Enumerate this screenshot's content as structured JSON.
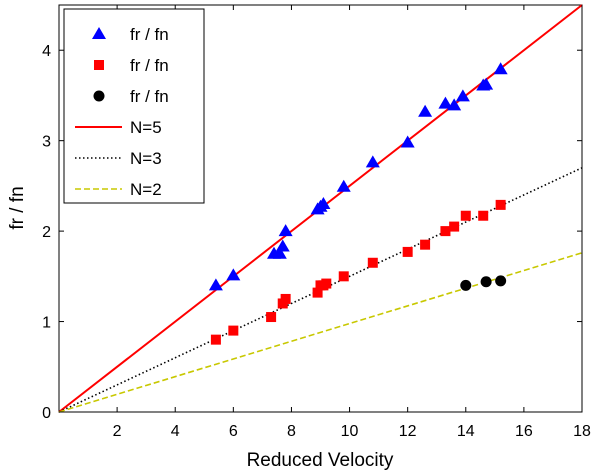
{
  "chart_data": {
    "type": "scatter",
    "title": "",
    "xlabel": "Reduced Velocity",
    "ylabel": "fr / fn",
    "xlim": [
      0,
      18
    ],
    "ylim": [
      0,
      4.5
    ],
    "xticks": [
      2,
      4,
      6,
      8,
      10,
      12,
      14,
      16,
      18
    ],
    "yticks": [
      0,
      1,
      2,
      3,
      4
    ],
    "grid": false,
    "legend_position": "top-left",
    "series": [
      {
        "name": "fr / fn",
        "kind": "scatter",
        "marker": "triangle",
        "color": "#0000ff",
        "x": [
          5.4,
          6.0,
          7.4,
          7.6,
          7.7,
          7.8,
          8.9,
          9.0,
          9.1,
          9.8,
          10.8,
          12.0,
          12.6,
          13.3,
          13.6,
          13.9,
          14.6,
          14.7,
          15.2
        ],
        "y": [
          1.4,
          1.51,
          1.75,
          1.75,
          1.83,
          2.0,
          2.24,
          2.27,
          2.3,
          2.49,
          2.76,
          2.98,
          3.32,
          3.41,
          3.39,
          3.49,
          3.61,
          3.62,
          3.79
        ]
      },
      {
        "name": "fr / fn",
        "kind": "scatter",
        "marker": "square",
        "color": "#ff0000",
        "x": [
          5.4,
          6.0,
          7.3,
          7.7,
          7.8,
          8.9,
          9.0,
          9.1,
          9.2,
          9.8,
          10.8,
          12.0,
          12.6,
          13.3,
          13.6,
          14.0,
          14.6,
          15.2
        ],
        "y": [
          0.8,
          0.9,
          1.05,
          1.2,
          1.25,
          1.32,
          1.4,
          1.4,
          1.42,
          1.5,
          1.65,
          1.77,
          1.85,
          2.0,
          2.05,
          2.17,
          2.17,
          2.29
        ]
      },
      {
        "name": "fr / fn",
        "kind": "scatter",
        "marker": "circle",
        "color": "#000000",
        "x": [
          14.0,
          14.7,
          15.2
        ],
        "y": [
          1.4,
          1.44,
          1.45
        ]
      },
      {
        "name": "N=5",
        "kind": "line",
        "style": "solid",
        "color": "#ff0000",
        "x": [
          0,
          18
        ],
        "y": [
          0,
          4.5
        ]
      },
      {
        "name": "N=3",
        "kind": "line",
        "style": "dotted",
        "color": "#000000",
        "x": [
          0,
          18
        ],
        "y": [
          0,
          2.7
        ]
      },
      {
        "name": "N=2",
        "kind": "line",
        "style": "dashed",
        "color": "#c8c800",
        "x": [
          0,
          18
        ],
        "y": [
          0,
          1.76
        ]
      }
    ]
  }
}
